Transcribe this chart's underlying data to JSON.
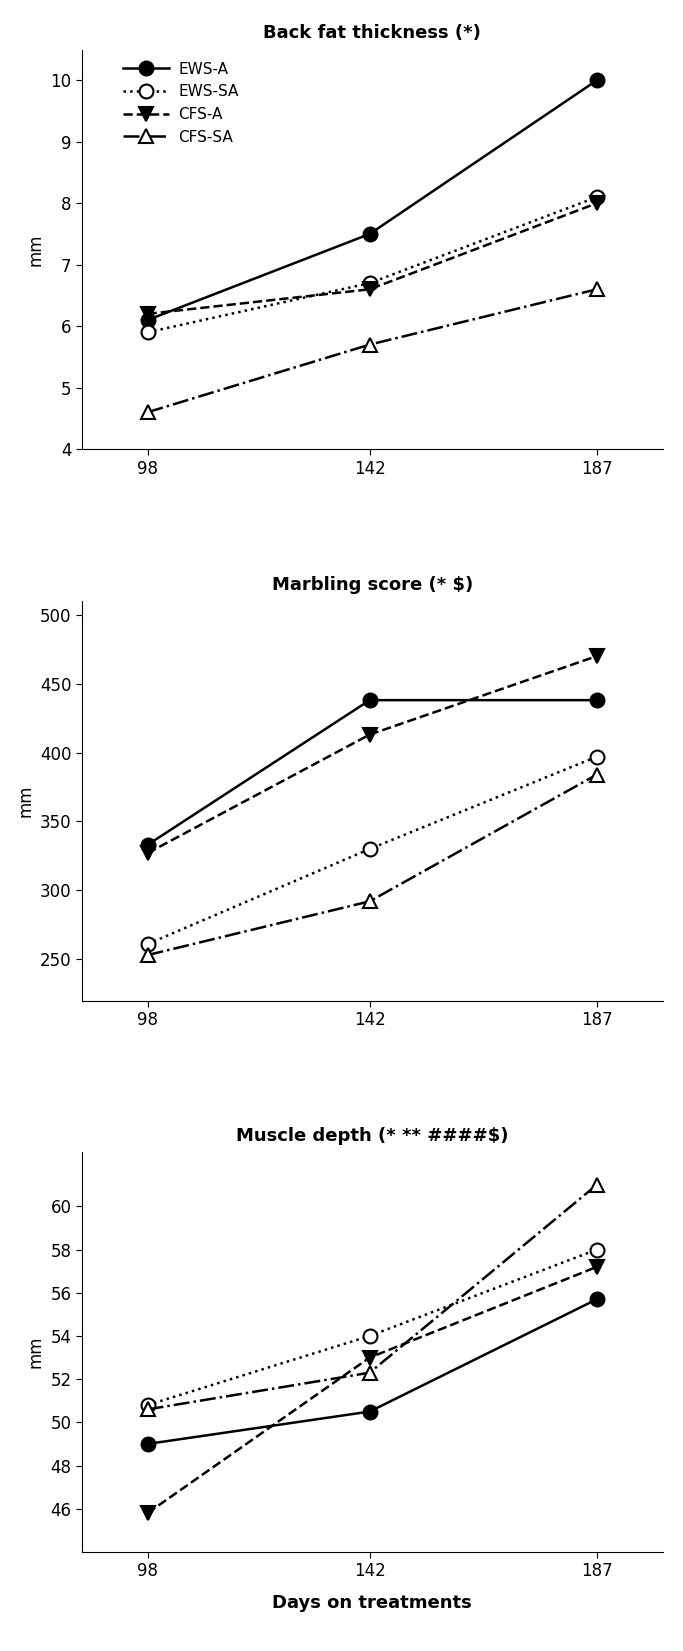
{
  "x": [
    98,
    142,
    187
  ],
  "chart1": {
    "title": "Back fat thickness (*)",
    "ylabel": "mm",
    "ylim": [
      4,
      10.5
    ],
    "yticks": [
      4,
      5,
      6,
      7,
      8,
      9,
      10
    ],
    "series": {
      "EWS-A": {
        "y": [
          6.1,
          7.5,
          10.0
        ],
        "linestyle": "-",
        "marker": "o",
        "filled": true
      },
      "EWS-SA": {
        "y": [
          5.9,
          6.7,
          8.1
        ],
        "linestyle": ":",
        "marker": "o",
        "filled": false
      },
      "CFS-A": {
        "y": [
          6.2,
          6.6,
          8.0
        ],
        "linestyle": "--",
        "marker": "v",
        "filled": true
      },
      "CFS-SA": {
        "y": [
          4.6,
          5.7,
          6.6
        ],
        "linestyle": "-.",
        "marker": "^",
        "filled": false
      }
    }
  },
  "chart2": {
    "title": "Marbling score (* $)",
    "ylabel": "mm",
    "ylim": [
      220,
      510
    ],
    "yticks": [
      250,
      300,
      350,
      400,
      450,
      500
    ],
    "series": {
      "EWS-A": {
        "y": [
          333,
          438,
          438
        ],
        "linestyle": "-",
        "marker": "o",
        "filled": true
      },
      "EWS-SA": {
        "y": [
          261,
          330,
          397
        ],
        "linestyle": ":",
        "marker": "o",
        "filled": false
      },
      "CFS-A": {
        "y": [
          327,
          413,
          470
        ],
        "linestyle": "--",
        "marker": "v",
        "filled": true
      },
      "CFS-SA": {
        "y": [
          253,
          292,
          384
        ],
        "linestyle": "-.",
        "marker": "^",
        "filled": false
      }
    }
  },
  "chart3": {
    "title": "Muscle depth (* ** ####$)",
    "ylabel": "mm",
    "ylim": [
      44,
      62.5
    ],
    "yticks": [
      46,
      48,
      50,
      52,
      54,
      56,
      58,
      60
    ],
    "series": {
      "EWS-A": {
        "y": [
          49.0,
          50.5,
          55.7
        ],
        "linestyle": "-",
        "marker": "o",
        "filled": true
      },
      "EWS-SA": {
        "y": [
          50.8,
          54.0,
          58.0
        ],
        "linestyle": ":",
        "marker": "o",
        "filled": false
      },
      "CFS-A": {
        "y": [
          45.8,
          53.0,
          57.2
        ],
        "linestyle": "--",
        "marker": "v",
        "filled": true
      },
      "CFS-SA": {
        "y": [
          50.6,
          52.3,
          61.0
        ],
        "linestyle": "-.",
        "marker": "^",
        "filled": false
      }
    }
  },
  "xlabel": "Days on treatments",
  "legend_labels": [
    "EWS-A",
    "EWS-SA",
    "CFS-A",
    "CFS-SA"
  ],
  "legend_linestyles": [
    "-",
    ":",
    "--",
    "-."
  ],
  "legend_markers": [
    "o",
    "o",
    "v",
    "^"
  ],
  "legend_filled": [
    true,
    false,
    true,
    false
  ],
  "color": "#000000",
  "marker_size": 10,
  "linewidth": 1.8,
  "xlim": [
    85,
    200
  ],
  "title_fontsize": 13,
  "label_fontsize": 12,
  "xlabel_fontsize": 13,
  "legend_fontsize": 11
}
